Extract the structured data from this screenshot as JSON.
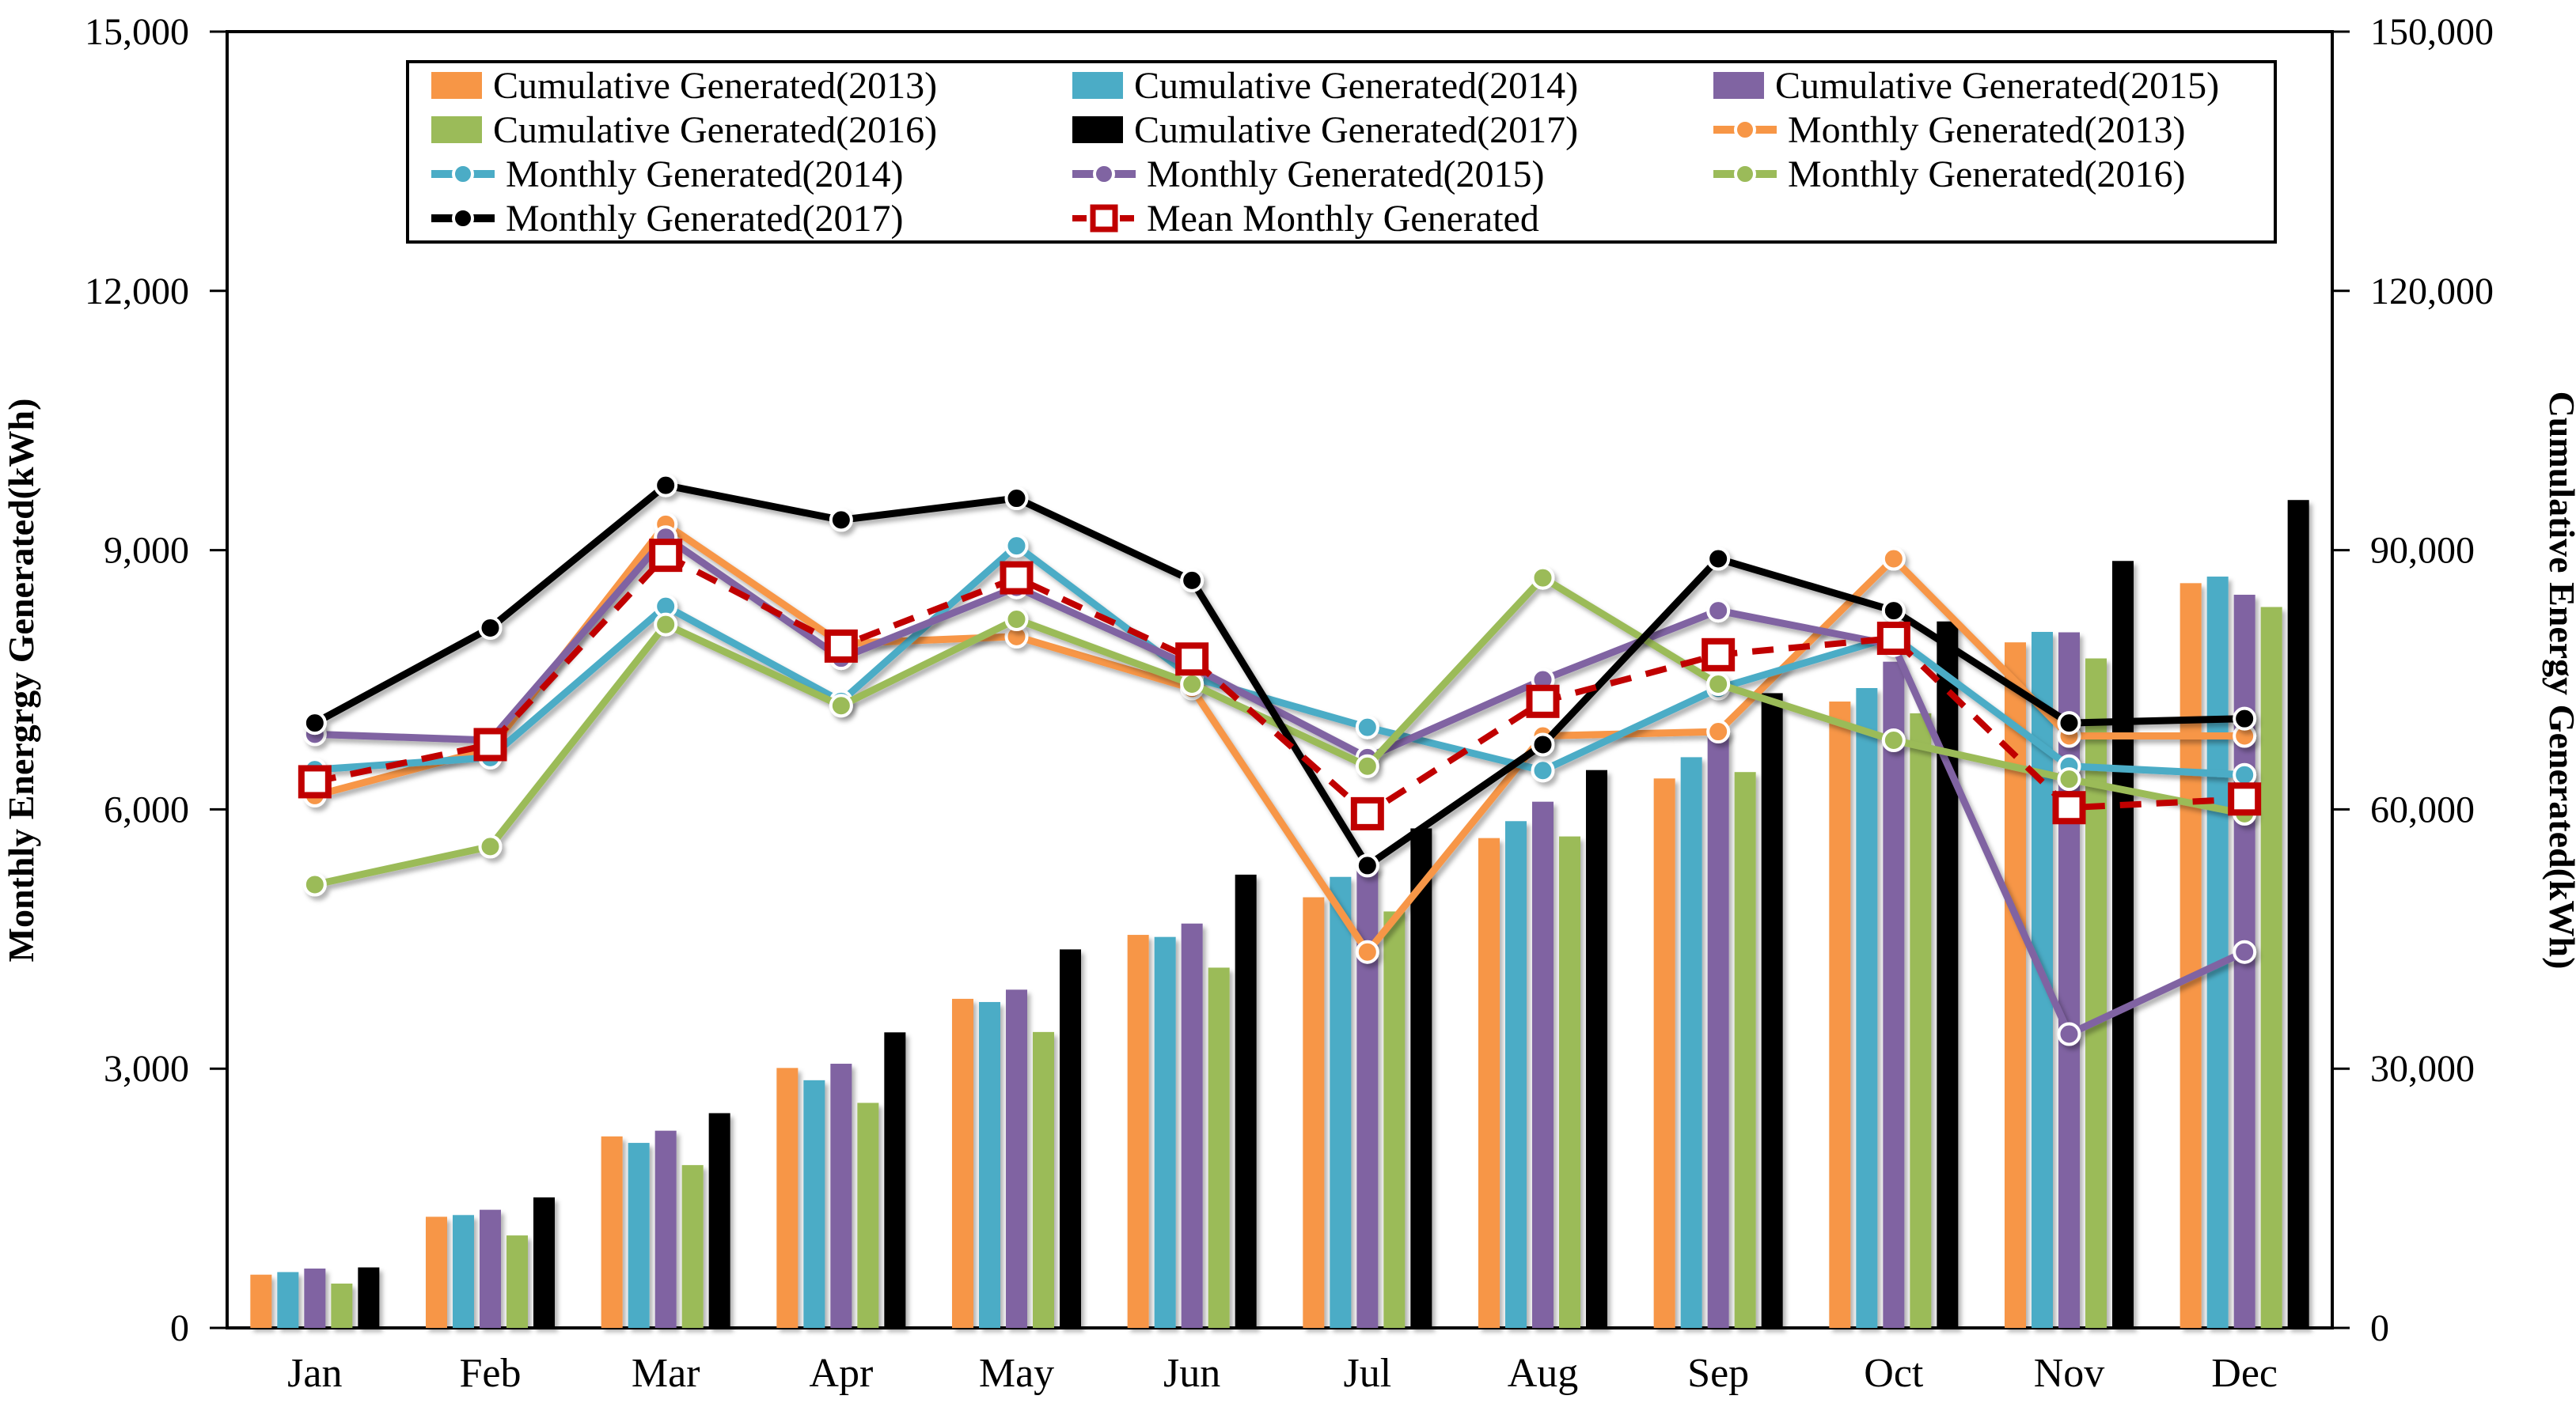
{
  "chart_data": {
    "type": "combo-bar-line",
    "categories": [
      "Jan",
      "Feb",
      "Mar",
      "Apr",
      "May",
      "Jun",
      "Jul",
      "Aug",
      "Sep",
      "Oct",
      "Nov",
      "Dec"
    ],
    "left_axis": {
      "label": "Monthly Energrgy Generated(kWh)",
      "min": 0,
      "max": 15000,
      "tick_values": [
        0,
        3000,
        6000,
        9000,
        12000,
        15000
      ],
      "tick_labels": [
        "0",
        "3,000",
        "6,000",
        "9,000",
        "12,000",
        "15,000"
      ]
    },
    "right_axis": {
      "label": "Cumulative Energy Generated(kWh)",
      "min": 0,
      "max": 150000,
      "tick_values": [
        0,
        30000,
        60000,
        90000,
        120000,
        150000
      ],
      "tick_labels": [
        "0",
        "30,000",
        "60,000",
        "90,000",
        "120,000",
        "150,000"
      ]
    },
    "grid": "off",
    "legend_position": "top-inside",
    "bar_series": [
      {
        "name": "Cumulative Generated(2013)",
        "color": "#F79646",
        "values": [
          6160,
          12860,
          22160,
          30080,
          38080,
          45480,
          49830,
          56680,
          63580,
          72480,
          79330,
          86180
        ]
      },
      {
        "name": "Cumulative Generated(2014)",
        "color": "#4BACC6",
        "values": [
          6460,
          13060,
          21410,
          28660,
          37710,
          45240,
          52190,
          58640,
          66040,
          74040,
          80540,
          86940
        ]
      },
      {
        "name": "Cumulative Generated(2015)",
        "color": "#8064A2",
        "values": [
          6870,
          13670,
          22820,
          30570,
          39140,
          46790,
          53390,
          60890,
          69190,
          77090,
          80490,
          84840
        ]
      },
      {
        "name": "Cumulative Generated(2016)",
        "color": "#9BBB59",
        "values": [
          5130,
          10700,
          18840,
          26040,
          34240,
          41690,
          48190,
          56870,
          64320,
          71120,
          77470,
          83420
        ]
      },
      {
        "name": "Cumulative Generated(2017)",
        "color": "#000000",
        "values": [
          7000,
          15100,
          24850,
          34200,
          43800,
          52450,
          57800,
          64550,
          73450,
          81750,
          88750,
          95800
        ]
      }
    ],
    "line_series": [
      {
        "name": "Monthly Generated(2013)",
        "color": "#F79646",
        "values": [
          6160,
          6700,
          9300,
          7920,
          8000,
          7400,
          4350,
          6850,
          6900,
          8900,
          6850,
          6850
        ]
      },
      {
        "name": "Monthly Generated(2014)",
        "color": "#4BACC6",
        "values": [
          6460,
          6600,
          8350,
          7250,
          9050,
          7530,
          6950,
          6450,
          7400,
          8000,
          6500,
          6400
        ]
      },
      {
        "name": "Monthly Generated(2015)",
        "color": "#8064A2",
        "values": [
          6870,
          6800,
          9150,
          7750,
          8570,
          7650,
          6600,
          7500,
          8300,
          7900,
          3400,
          4350
        ]
      },
      {
        "name": "Monthly Generated(2016)",
        "color": "#9BBB59",
        "values": [
          5130,
          5570,
          8140,
          7200,
          8200,
          7450,
          6500,
          8680,
          7450,
          6800,
          6350,
          5950
        ]
      },
      {
        "name": "Monthly Generated(2017)",
        "color": "#000000",
        "values": [
          7000,
          8100,
          9750,
          9350,
          9600,
          8650,
          5350,
          6750,
          8900,
          8300,
          7000,
          7050
        ]
      }
    ],
    "mean_series": {
      "name": "Mean Monthly Generated",
      "color": "#C00000",
      "style": "dashed",
      "marker": "open-square",
      "values": [
        6320,
        6750,
        8940,
        7890,
        8680,
        7740,
        5950,
        7250,
        7790,
        7980,
        6020,
        6120
      ]
    },
    "legend_entries": [
      {
        "label": "Cumulative Generated(2013)",
        "type": "swatch",
        "color": "#F79646"
      },
      {
        "label": "Cumulative Generated(2014)",
        "type": "swatch",
        "color": "#4BACC6"
      },
      {
        "label": "Cumulative Generated(2015)",
        "type": "swatch",
        "color": "#8064A2"
      },
      {
        "label": "Cumulative Generated(2016)",
        "type": "swatch",
        "color": "#9BBB59"
      },
      {
        "label": "Cumulative Generated(2017)",
        "type": "swatch",
        "color": "#000000"
      },
      {
        "label": "Monthly Generated(2013)",
        "type": "line",
        "color": "#F79646"
      },
      {
        "label": "Monthly Generated(2014)",
        "type": "line",
        "color": "#4BACC6"
      },
      {
        "label": "Monthly Generated(2015)",
        "type": "line",
        "color": "#8064A2"
      },
      {
        "label": "Monthly Generated(2016)",
        "type": "line",
        "color": "#9BBB59"
      },
      {
        "label": "Monthly Generated(2017)",
        "type": "line",
        "color": "#000000"
      },
      {
        "label": "Mean Monthly Generated",
        "type": "mean-line",
        "color": "#C00000"
      }
    ]
  }
}
